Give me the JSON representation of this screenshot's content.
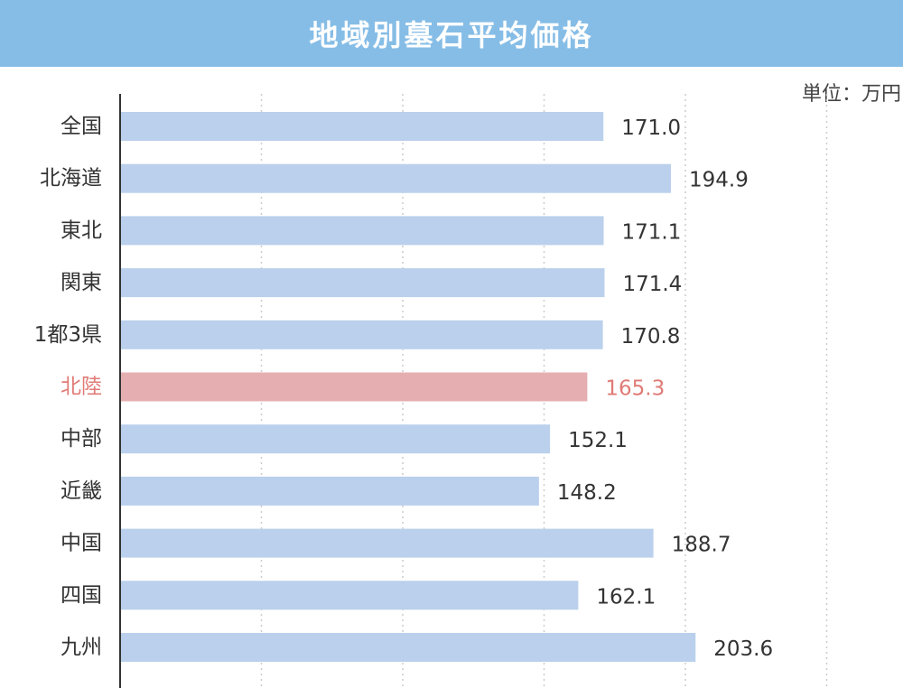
{
  "header": {
    "title": "地域別墓石平均価格"
  },
  "unit_label": "単位：万円",
  "colors": {
    "title_bg": "#86bde6",
    "bar_default": "#bad0ec",
    "bar_highlight": "#e5afb1",
    "label_default": "#333333",
    "label_highlight": "#e07b76",
    "grid": "#cccccc",
    "axis": "#333333"
  },
  "chart_data": {
    "type": "bar",
    "orientation": "horizontal",
    "title": "地域別墓石平均価格",
    "unit": "単位：万円",
    "categories": [
      "全国",
      "北海道",
      "東北",
      "関東",
      "1都3県",
      "北陸",
      "中部",
      "近畿",
      "中国",
      "四国",
      "九州"
    ],
    "values": [
      171.0,
      194.9,
      171.1,
      171.4,
      170.8,
      165.3,
      152.1,
      148.2,
      188.7,
      162.1,
      203.6
    ],
    "value_labels": [
      "171.0",
      "194.9",
      "171.1",
      "171.4",
      "170.8",
      "165.3",
      "152.1",
      "148.2",
      "188.7",
      "162.1",
      "203.6"
    ],
    "highlight": "北陸",
    "xlim": [
      0,
      250
    ],
    "grid": true,
    "grid_style": "dotted vertical"
  }
}
